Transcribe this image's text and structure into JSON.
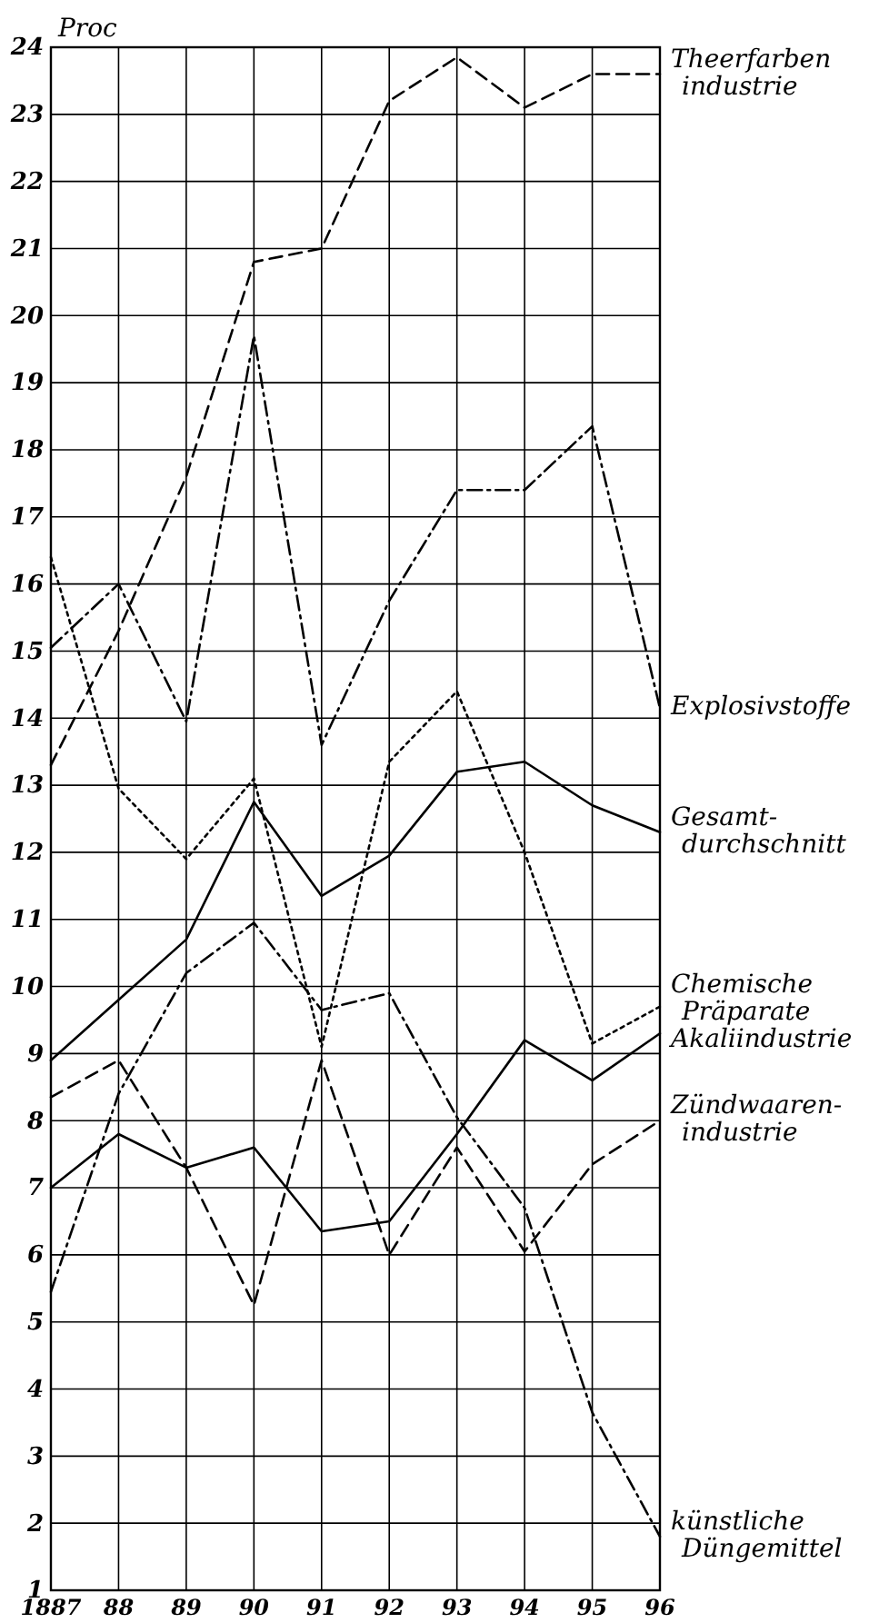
{
  "chart_data": {
    "type": "line",
    "ylabel": "Proc",
    "categories": [
      "1887",
      "88",
      "89",
      "90",
      "91",
      "92",
      "93",
      "94",
      "95",
      "96"
    ],
    "ylim": [
      1,
      24
    ],
    "yticks": [
      1,
      2,
      3,
      4,
      5,
      6,
      7,
      8,
      9,
      10,
      11,
      12,
      13,
      14,
      15,
      16,
      17,
      18,
      19,
      20,
      21,
      22,
      23,
      24
    ],
    "grid": true,
    "marker": "none",
    "series": [
      {
        "name": "Theerfarben industrie",
        "color": "#000000",
        "line_style": "dashed",
        "values": [
          13.3,
          15.3,
          17.6,
          20.8,
          21.0,
          23.2,
          23.85,
          23.1,
          23.6,
          23.6
        ]
      },
      {
        "name": "Explosivstoffe",
        "color": "#000000",
        "line_style": "dashdot",
        "values": [
          15.05,
          16.0,
          13.95,
          19.7,
          13.6,
          15.75,
          17.4,
          17.4,
          18.35,
          14.15
        ]
      },
      {
        "name": "Gesamt-durchschnitt",
        "color": "#000000",
        "line_style": "solid",
        "values": [
          8.9,
          9.8,
          10.7,
          12.75,
          11.35,
          11.95,
          13.2,
          13.35,
          12.7,
          12.3
        ]
      },
      {
        "name": "Chemische Präparate",
        "color": "#000000",
        "line_style": "dotted",
        "values": [
          16.4,
          12.95,
          11.9,
          13.1,
          9.1,
          13.35,
          14.4,
          12.0,
          9.15,
          9.7
        ]
      },
      {
        "name": "Akaliindustrie",
        "color": "#000000",
        "line_style": "solid",
        "values": [
          7.0,
          7.8,
          7.3,
          7.6,
          6.35,
          6.5,
          7.8,
          9.2,
          8.6,
          9.3
        ]
      },
      {
        "name": "Zündwaaren-industrie",
        "color": "#000000",
        "line_style": "dashed",
        "values": [
          8.35,
          8.9,
          7.3,
          5.25,
          8.9,
          6.0,
          7.6,
          6.05,
          7.35,
          8.0
        ]
      },
      {
        "name": "künstliche Düngemittel",
        "color": "#000000",
        "line_style": "dashdot",
        "values": [
          5.45,
          8.4,
          10.2,
          10.95,
          9.65,
          9.9,
          8.05,
          6.7,
          3.65,
          1.8
        ]
      }
    ]
  }
}
